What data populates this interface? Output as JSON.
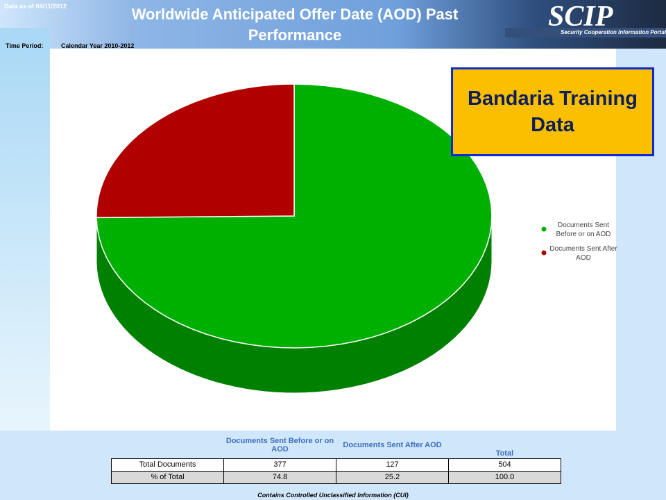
{
  "header": {
    "data_as_of": "Data as of 04/11/2012",
    "title": "Worldwide Anticipated Offer Date (AOD) Past Performance",
    "time_period_label": "Time Period:",
    "time_period": "Calendar Year 2010-2012",
    "logo": "SCIP",
    "logo_subtitle": "Security Cooperation Information Portal"
  },
  "overlay": "Bandaria Training Data",
  "chart_data": {
    "type": "pie",
    "categories": [
      "Documents Sent Before or on AOD",
      "Documents Sent After AOD"
    ],
    "values": [
      74.8,
      25.2
    ],
    "colors": [
      "#00b000",
      "#b00000"
    ],
    "side_colors": [
      "#008000",
      "#800000"
    ]
  },
  "table": {
    "columns": [
      "Documents Sent Before or on AOD",
      "Documents Sent After AOD",
      "Total"
    ],
    "rows": [
      [
        "Total Documents",
        "377",
        "127",
        "504"
      ],
      [
        "% of Total",
        "74.8",
        "25.2",
        "100.0"
      ]
    ]
  },
  "footer": "Contains Controlled Unclassified Information (CUI)"
}
